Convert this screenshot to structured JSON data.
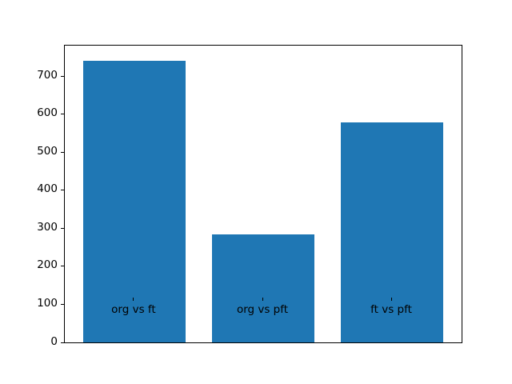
{
  "chart_data": {
    "type": "bar",
    "categories": [
      "org vs ft",
      "org vs pft",
      "ft vs pft"
    ],
    "values": [
      740,
      283,
      579
    ],
    "title": "",
    "xlabel": "",
    "ylabel": "",
    "ylim": [
      0,
      780
    ],
    "yticks": [
      0,
      100,
      200,
      300,
      400,
      500,
      600,
      700
    ],
    "xlim": [
      -0.54,
      2.54
    ],
    "bar_width": 0.8,
    "bar_color": "#1f77b4",
    "axes_color": "#000000",
    "background_color": "#ffffff",
    "grid": false,
    "legend_position": "none"
  }
}
